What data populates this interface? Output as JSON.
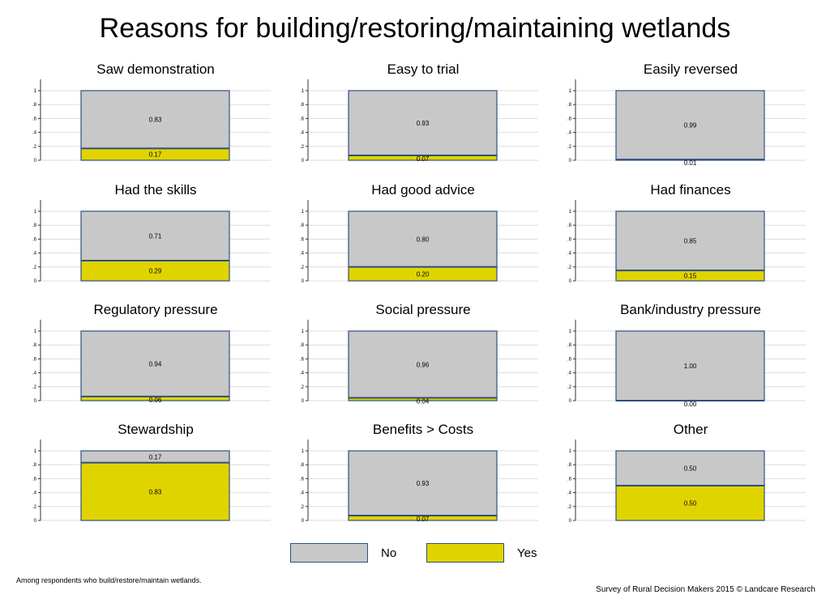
{
  "title": "Reasons for building/restoring/maintaining wetlands",
  "footnote": "Among respondents who build/restore/maintain wetlands.",
  "source": "Survey of Rural Decision Makers 2015 © Landcare Research",
  "legend": {
    "no_label": "No",
    "yes_label": "Yes",
    "no_color": "#c8c8c8",
    "yes_color": "#e0d400"
  },
  "colors": {
    "border": "#2f4f7f",
    "grid": "#dddddd",
    "axis": "#333333"
  },
  "chart_data": {
    "type": "bar",
    "stacked": true,
    "yticks": [
      "0",
      ".2",
      ".4",
      ".6",
      ".8",
      "1"
    ],
    "ylim": [
      0,
      1
    ],
    "series_names": [
      "No",
      "Yes"
    ],
    "panels": [
      {
        "title": "Saw demonstration",
        "no": 0.83,
        "yes": 0.17,
        "no_label": "0.83",
        "yes_label": "0.17"
      },
      {
        "title": "Easy to trial",
        "no": 0.93,
        "yes": 0.07,
        "no_label": "0.93",
        "yes_label": "0.07"
      },
      {
        "title": "Easily reversed",
        "no": 0.99,
        "yes": 0.01,
        "no_label": "0.99",
        "yes_label": "0.01"
      },
      {
        "title": "Had the skills",
        "no": 0.71,
        "yes": 0.29,
        "no_label": "0.71",
        "yes_label": "0.29"
      },
      {
        "title": "Had good advice",
        "no": 0.8,
        "yes": 0.2,
        "no_label": "0.80",
        "yes_label": "0.20"
      },
      {
        "title": "Had finances",
        "no": 0.85,
        "yes": 0.15,
        "no_label": "0.85",
        "yes_label": "0.15"
      },
      {
        "title": "Regulatory pressure",
        "no": 0.94,
        "yes": 0.06,
        "no_label": "0.94",
        "yes_label": "0.06"
      },
      {
        "title": "Social pressure",
        "no": 0.96,
        "yes": 0.04,
        "no_label": "0.96",
        "yes_label": "0.04"
      },
      {
        "title": "Bank/industry pressure",
        "no": 1.0,
        "yes": 0.0,
        "no_label": "1.00",
        "yes_label": "0.00"
      },
      {
        "title": "Stewardship",
        "no": 0.17,
        "yes": 0.83,
        "no_label": "0.17",
        "yes_label": "0.83"
      },
      {
        "title": "Benefits > Costs",
        "no": 0.93,
        "yes": 0.07,
        "no_label": "0.93",
        "yes_label": "0.07"
      },
      {
        "title": "Other",
        "no": 0.5,
        "yes": 0.5,
        "no_label": "0.50",
        "yes_label": "0.50"
      }
    ]
  }
}
